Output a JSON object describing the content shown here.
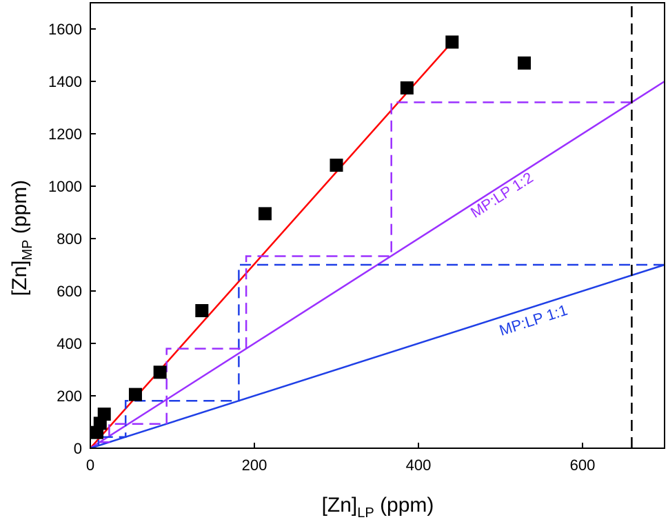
{
  "chart_data": {
    "type": "scatter",
    "xlabel": {
      "main": "[Zn]",
      "sub": "LP",
      "unit": " (ppm)"
    },
    "ylabel": {
      "main": "[Zn]",
      "sub": "MP",
      "unit": " (ppm)"
    },
    "xlim": [
      0,
      700
    ],
    "ylim": [
      0,
      1700
    ],
    "xticks": [
      0,
      200,
      400,
      600
    ],
    "yticks": [
      0,
      200,
      400,
      600,
      800,
      1000,
      1200,
      1400,
      1600
    ],
    "grid": false,
    "legend": "none",
    "series": [
      {
        "kind": "points",
        "color": "#000000",
        "x": [
          8,
          12,
          17,
          55,
          85,
          136,
          213,
          300,
          386,
          441,
          529
        ],
        "y": [
          60,
          95,
          130,
          205,
          290,
          525,
          895,
          1080,
          1375,
          1550,
          1470
        ]
      },
      {
        "kind": "line",
        "color": "#ff0000",
        "x": [
          0,
          441
        ],
        "y": [
          0,
          1550
        ]
      },
      {
        "kind": "line",
        "color": "#9b30ff",
        "x": [
          0,
          700
        ],
        "y": [
          0,
          1400
        ]
      },
      {
        "kind": "line",
        "color": "#1f3fe6",
        "x": [
          0,
          700
        ],
        "y": [
          0,
          700
        ]
      },
      {
        "kind": "staircase-dashed",
        "color": "#1f3fe6",
        "x": [
          700,
          181,
          181,
          43,
          43,
          10,
          10
        ],
        "y": [
          700,
          700,
          181,
          181,
          43,
          43,
          10
        ]
      },
      {
        "kind": "staircase-dashed",
        "color": "#9b30ff",
        "x": [
          660,
          367,
          367,
          190,
          190,
          93,
          93,
          23,
          23,
          5
        ],
        "y": [
          1320,
          1320,
          733,
          733,
          380,
          380,
          93,
          93,
          23,
          23
        ]
      },
      {
        "kind": "vline-dashed",
        "color": "#000000",
        "x": [
          660,
          660
        ],
        "y": [
          0,
          1700
        ]
      }
    ],
    "annotations": [
      {
        "text": "MP:LP 1:2",
        "color": "#9b30ff",
        "x": 505,
        "y": 950
      },
      {
        "text": "MP:LP 1:1",
        "color": "#1f3fe6",
        "x": 542,
        "y": 470
      }
    ]
  }
}
